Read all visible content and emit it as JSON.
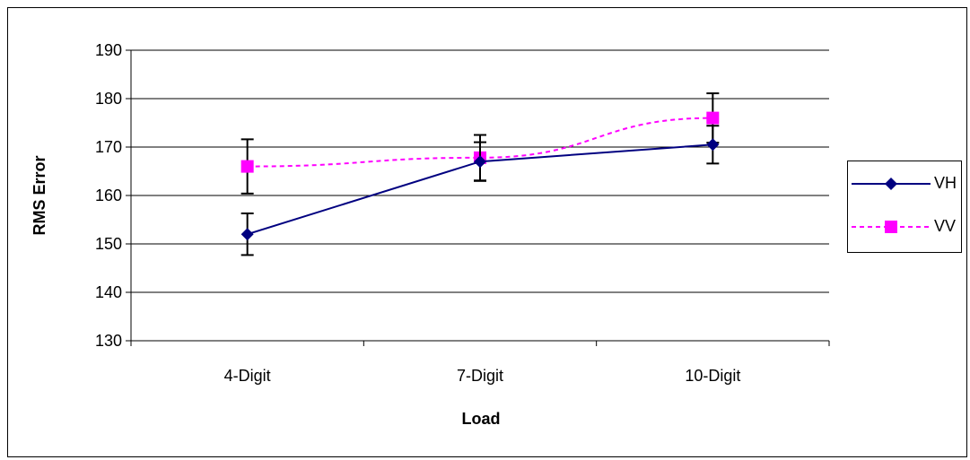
{
  "chart_data": {
    "type": "line",
    "categories": [
      "4-Digit",
      "7-Digit",
      "10-Digit"
    ],
    "xlabel": "Load",
    "ylabel": "RMS Error",
    "ylim": [
      130,
      190
    ],
    "yticks": [
      130,
      140,
      150,
      160,
      170,
      180,
      190
    ],
    "grid": true,
    "legend_position": "right",
    "series": [
      {
        "name": "VH",
        "values": [
          152,
          167,
          170.5
        ],
        "error": [
          4.3,
          4.0,
          3.9
        ],
        "color": "#000080",
        "marker": "diamond",
        "line_style": "solid"
      },
      {
        "name": "VV",
        "values": [
          166,
          167.8,
          176
        ],
        "error": [
          5.6,
          4.7,
          5.1
        ],
        "color": "#FF00FF",
        "marker": "square",
        "line_style": "dashed"
      }
    ]
  }
}
